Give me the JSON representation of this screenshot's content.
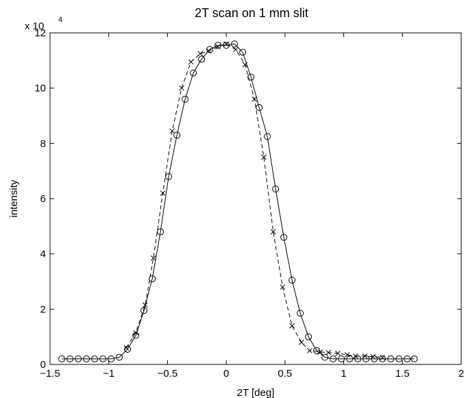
{
  "chart_data": {
    "type": "line",
    "title": "2T scan on 1 mm slit",
    "xlabel": "2T [deg]",
    "ylabel": "intensity",
    "y_multiplier": {
      "base": "x 10",
      "exponent": "4"
    },
    "xlim": [
      -1.5,
      2
    ],
    "ylim": [
      0,
      120000
    ],
    "x_ticks": [
      -1.5,
      -1,
      -0.5,
      0,
      0.5,
      1,
      1.5,
      2
    ],
    "x_tick_labels": [
      "−1.5",
      "−1",
      "−0.5",
      "0",
      "0.5",
      "1",
      "1.5",
      "2"
    ],
    "y_ticks": [
      0,
      20000,
      40000,
      60000,
      80000,
      100000,
      120000
    ],
    "y_tick_labels": [
      "0",
      "2",
      "4",
      "6",
      "8",
      "10",
      "12"
    ],
    "grid": false,
    "series": [
      {
        "line_style": "solid",
        "marker": "circle",
        "x": [
          -1.4,
          -1.33,
          -1.26,
          -1.19,
          -1.12,
          -1.05,
          -0.98,
          -0.91,
          -0.84,
          -0.77,
          -0.7,
          -0.63,
          -0.56,
          -0.49,
          -0.42,
          -0.35,
          -0.28,
          -0.21,
          -0.14,
          -0.07,
          0.0,
          0.07,
          0.14,
          0.21,
          0.28,
          0.35,
          0.42,
          0.49,
          0.56,
          0.63,
          0.7,
          0.77,
          0.84,
          0.91,
          0.98,
          1.05,
          1.12,
          1.19,
          1.26,
          1.33,
          1.4,
          1.47,
          1.54,
          1.6
        ],
        "y": [
          2000,
          2000,
          2000,
          2000,
          2000,
          2000,
          2000,
          2600,
          5500,
          10500,
          19500,
          31000,
          48000,
          68000,
          83000,
          96000,
          105500,
          110500,
          114000,
          115500,
          115500,
          116000,
          113000,
          104000,
          93000,
          82500,
          63500,
          46000,
          30500,
          18500,
          10000,
          5000,
          2600,
          2000,
          2000,
          2000,
          2000,
          2000,
          2000,
          2000,
          2000,
          2000,
          2000,
          2000
        ]
      },
      {
        "line_style": "dashed",
        "marker": "x",
        "x": [
          -0.85,
          -0.77,
          -0.69,
          -0.62,
          -0.54,
          -0.46,
          -0.38,
          -0.3,
          -0.22,
          -0.15,
          -0.07,
          0.0,
          0.08,
          0.16,
          0.24,
          0.32,
          0.4,
          0.48,
          0.56,
          0.64,
          0.71,
          0.8,
          0.87,
          0.95,
          1.03,
          1.1,
          1.18,
          1.25,
          1.33
        ],
        "y": [
          6000,
          11500,
          21500,
          38500,
          62000,
          84500,
          100000,
          109500,
          112500,
          113500,
          115000,
          116000,
          114000,
          108500,
          96000,
          75000,
          48000,
          28000,
          14000,
          8000,
          5000,
          4500,
          4300,
          4000,
          3500,
          3000,
          3000,
          2800,
          2500
        ]
      }
    ]
  }
}
